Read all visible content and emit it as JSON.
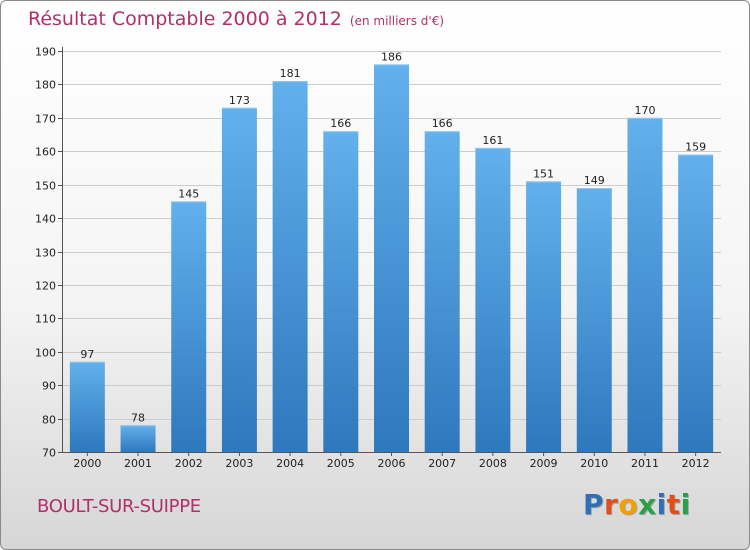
{
  "title": "Résultat Comptable 2000 à 2012",
  "unit": "(en milliers d'€)",
  "location": "BOULT-SUR-SUIPPE",
  "logo": {
    "text": "Proxiti",
    "colors": [
      "#2e6fb5",
      "#e0501e",
      "#f0a000",
      "#2aa04a",
      "#2e6fb5",
      "#e0501e",
      "#2aa04a"
    ]
  },
  "colors": {
    "bar": "#4f9fdf",
    "barLight": "#62b0ec",
    "barDark": "#2e78bd",
    "grid": "#cccccc",
    "text": "#b0306a"
  },
  "chart_data": {
    "type": "bar",
    "title": "Résultat Comptable 2000 à 2012 (en milliers d'€)",
    "categories": [
      "2000",
      "2001",
      "2002",
      "2003",
      "2004",
      "2005",
      "2006",
      "2007",
      "2008",
      "2009",
      "2010",
      "2011",
      "2012"
    ],
    "values": [
      97,
      78,
      145,
      173,
      181,
      166,
      186,
      166,
      161,
      151,
      149,
      170,
      159
    ],
    "ylim": [
      70,
      190
    ],
    "yticks": [
      70,
      80,
      90,
      100,
      110,
      120,
      130,
      140,
      150,
      160,
      170,
      180,
      190
    ],
    "xlabel": "",
    "ylabel": "",
    "grid": true
  }
}
